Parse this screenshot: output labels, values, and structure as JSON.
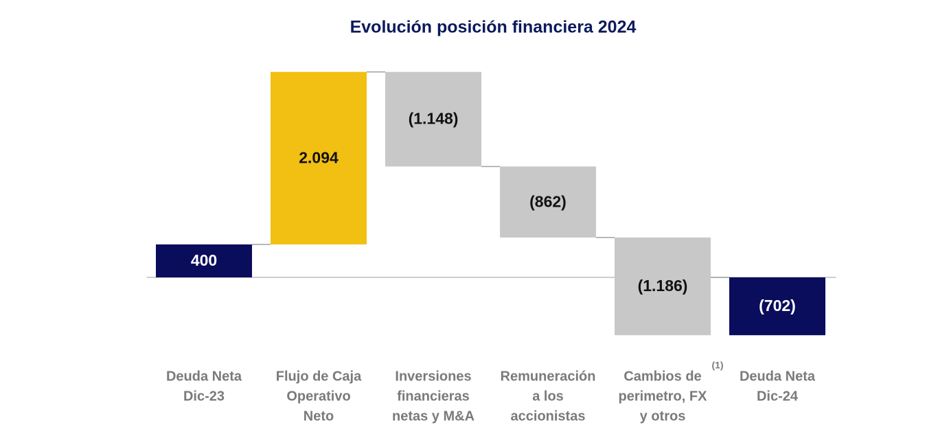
{
  "chart_data": {
    "type": "waterfall",
    "title": "Evolución posición financiera 2024",
    "categories": [
      [
        "Deuda Neta",
        "Dic-23"
      ],
      [
        "Flujo de Caja",
        "Operativo",
        "Neto"
      ],
      [
        "Inversiones",
        "financieras",
        "netas y M&A"
      ],
      [
        "Remuneración",
        "a los",
        "accionistas"
      ],
      [
        "Cambios de",
        "perimetro, FX",
        "y otros"
      ],
      [
        "Deuda Neta",
        "Dic-24"
      ]
    ],
    "annotation": "(1)",
    "values": [
      400,
      2094,
      -1148,
      -862,
      -1186,
      -702
    ],
    "value_labels": [
      "400",
      "2.094",
      "(1.148)",
      "(862)",
      "(1.186)",
      "(702)"
    ],
    "kinds": [
      "total",
      "delta",
      "delta",
      "delta",
      "delta",
      "total"
    ],
    "colors": [
      "#0a0d5c",
      "#f2bf13",
      "#c8c8c8",
      "#c8c8c8",
      "#c8c8c8",
      "#0a0d5c"
    ],
    "label_colors": [
      "#ffffff",
      "#111111",
      "#111111",
      "#111111",
      "#111111",
      "#ffffff"
    ],
    "ylim": [
      -1200,
      2800
    ]
  }
}
